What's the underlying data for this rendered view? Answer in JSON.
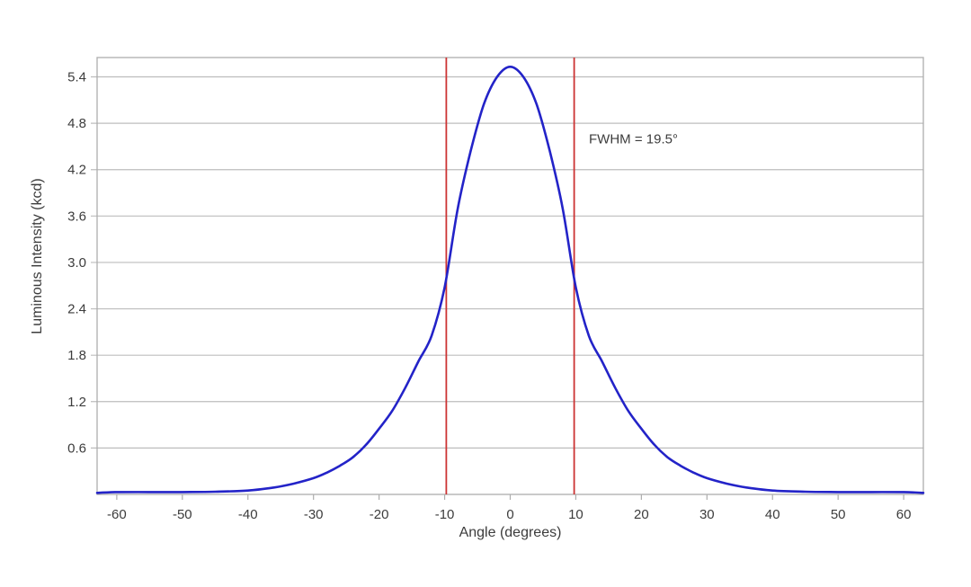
{
  "chart_data": {
    "type": "line",
    "title": "",
    "xlabel": "Angle (degrees)",
    "ylabel": "Luminous Intensity (kcd)",
    "xlim": [
      -63,
      63
    ],
    "ylim": [
      0,
      5.65
    ],
    "xticks": [
      -60,
      -50,
      -40,
      -30,
      -20,
      -10,
      0,
      10,
      20,
      30,
      40,
      50,
      60
    ],
    "yticks": [
      0.6,
      1.2,
      1.8,
      2.4,
      3.0,
      3.6,
      4.2,
      4.8,
      5.4
    ],
    "grid": "horizontal",
    "legend": "none",
    "series": [
      {
        "name": "luminous-intensity",
        "color": "#2323c8",
        "x": [
          -63,
          -60,
          -55,
          -50,
          -45,
          -40,
          -36,
          -33,
          -30,
          -28,
          -26,
          -24,
          -22,
          -20,
          -18,
          -16,
          -14,
          -12,
          -10,
          -8,
          -6,
          -4,
          -2,
          0,
          2,
          4,
          6,
          8,
          10,
          12,
          14,
          16,
          18,
          20,
          22,
          24,
          26,
          28,
          30,
          33,
          36,
          40,
          45,
          50,
          55,
          60,
          63
        ],
        "y": [
          0.02,
          0.03,
          0.03,
          0.03,
          0.035,
          0.05,
          0.09,
          0.14,
          0.21,
          0.28,
          0.37,
          0.48,
          0.64,
          0.85,
          1.08,
          1.38,
          1.72,
          2.05,
          2.68,
          3.7,
          4.45,
          5.05,
          5.4,
          5.53,
          5.4,
          5.05,
          4.45,
          3.7,
          2.68,
          2.05,
          1.72,
          1.38,
          1.08,
          0.85,
          0.64,
          0.48,
          0.37,
          0.28,
          0.21,
          0.14,
          0.09,
          0.05,
          0.035,
          0.03,
          0.03,
          0.03,
          0.02
        ]
      }
    ],
    "annotations": {
      "fwhm_label": {
        "text": "FWHM = 19.5°",
        "x": 12,
        "y": 4.6
      },
      "fwhm_lines": {
        "x": [
          -9.75,
          9.75
        ],
        "color": "#cc3333"
      }
    },
    "colors": {
      "grid": "#bdbdbd",
      "border": "#adadad",
      "tick": "#adadad",
      "text": "#3c3c3c",
      "background": "#ffffff"
    }
  }
}
